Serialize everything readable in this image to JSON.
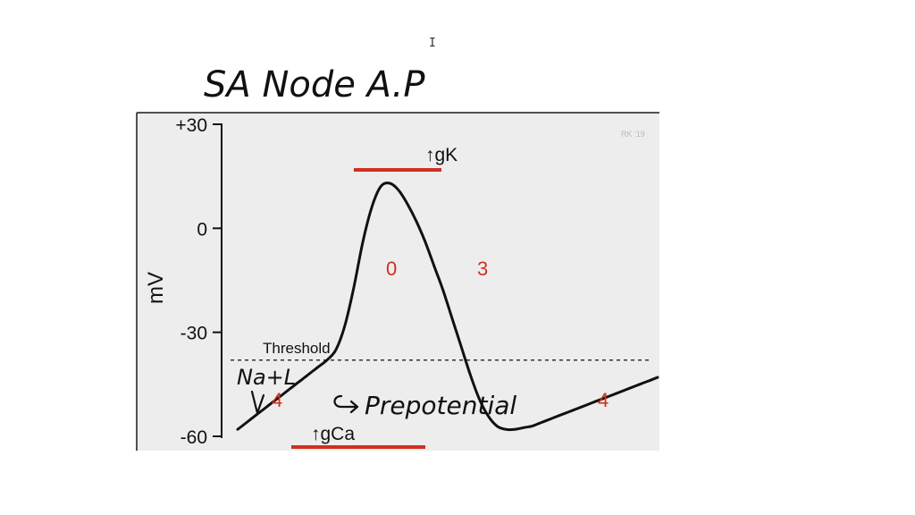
{
  "handwritten": {
    "title": "SA Node A.P",
    "ion_note": "Na+L",
    "prepotential": "Prepotential"
  },
  "chart_data": {
    "type": "line",
    "ylabel": "mV",
    "ylim": [
      -60,
      30
    ],
    "yticks": [
      {
        "value": 30,
        "label": "+30"
      },
      {
        "value": 0,
        "label": "0"
      },
      {
        "value": -30,
        "label": "-30"
      },
      {
        "value": -60,
        "label": "-60"
      }
    ],
    "threshold": {
      "value": -38,
      "label": "Threshold"
    },
    "series": [
      {
        "x": [
          0,
          10,
          20,
          30,
          40,
          50,
          60,
          65,
          70,
          75,
          80,
          85,
          90,
          100,
          110,
          120,
          130,
          140,
          150,
          160,
          170,
          180,
          190,
          200,
          210,
          220,
          230,
          240,
          250,
          260,
          270,
          280,
          290,
          300,
          310,
          320,
          330,
          340,
          350,
          360,
          370,
          380,
          390,
          400,
          410,
          420,
          430,
          440,
          450,
          460,
          470
        ],
        "y": [
          -58,
          -56,
          -54,
          -52,
          -50,
          -48,
          -46,
          -45,
          -44,
          -43,
          -42,
          -41,
          -40,
          -38,
          -35,
          -28,
          -17,
          -4,
          6,
          12,
          13,
          11,
          7,
          2,
          -4,
          -11,
          -18,
          -26,
          -34,
          -42,
          -49,
          -54,
          -57,
          -58,
          -58,
          -57.5,
          -57,
          -56,
          -55,
          -54,
          -53,
          -52,
          -51,
          -50,
          -49,
          -48,
          -47,
          -46,
          -45,
          -44,
          -43
        ]
      }
    ],
    "phase_labels": [
      "4",
      "0",
      "3",
      "4"
    ],
    "conductances": [
      {
        "label": "↑gK",
        "start": 130,
        "end": 228
      },
      {
        "label": "↑gCa",
        "start": 60,
        "end": 210
      }
    ],
    "credit": "RK '19",
    "colors": {
      "trace": "#111111",
      "phase_label": "#d0301f",
      "conductance_bar": "#d0301f",
      "plot_background": "#ededed",
      "handwriting": "#111111"
    }
  },
  "cursor_glyph": "I"
}
